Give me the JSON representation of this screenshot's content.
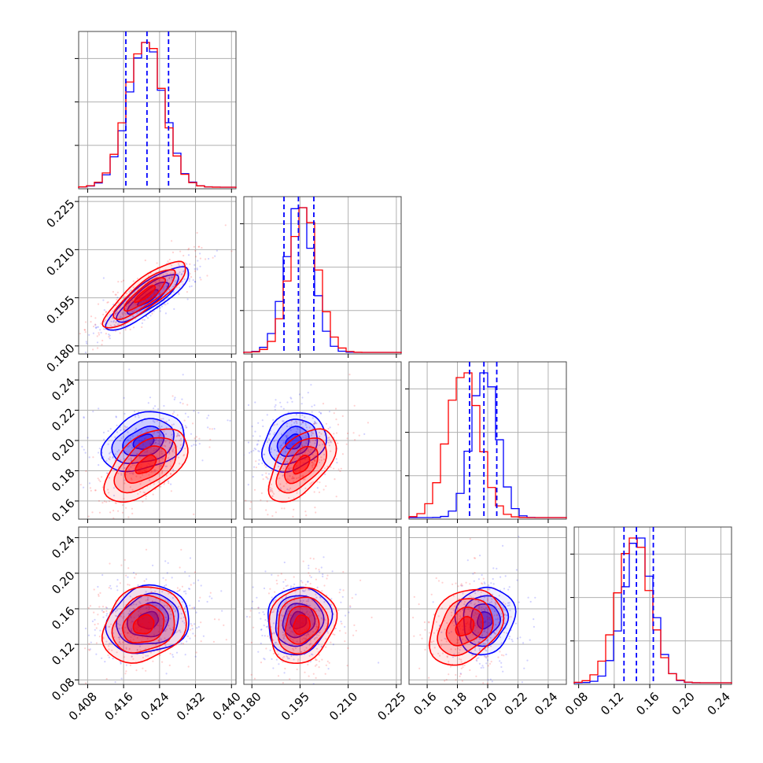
{
  "colors": {
    "blue": "#0000ff",
    "red": "#ff0000",
    "grid": "#b0b0b0"
  },
  "chart_data": {
    "type": "corner",
    "title": "",
    "grid": true,
    "dimensions": [
      {
        "range": [
          0.406,
          0.441
        ],
        "ticks": [
          "0.408",
          "0.416",
          "0.424",
          "0.432",
          "0.440"
        ],
        "tick_values": [
          0.408,
          0.416,
          0.424,
          0.432,
          0.44
        ],
        "blue": {
          "mean": 0.421,
          "sd": 0.004
        },
        "red": {
          "mean": 0.4208,
          "sd": 0.004
        },
        "quantiles": [
          0.4165,
          0.4212,
          0.426
        ]
      },
      {
        "range": [
          0.1775,
          0.2265
        ],
        "ticks": [
          "0.180",
          "0.195",
          "0.210",
          "0.225"
        ],
        "tick_values": [
          0.18,
          0.195,
          0.21,
          0.225
        ],
        "blue": {
          "mean": 0.1948,
          "sd": 0.0043
        },
        "red": {
          "mean": 0.1962,
          "sd": 0.0045
        },
        "quantiles": [
          0.19,
          0.1945,
          0.1993
        ]
      },
      {
        "range": [
          0.148,
          0.252
        ],
        "ticks": [
          "0.16",
          "0.18",
          "0.20",
          "0.22",
          "0.24"
        ],
        "tick_values": [
          0.16,
          0.18,
          0.2,
          0.22,
          0.24
        ],
        "blue": {
          "mean": 0.198,
          "sd": 0.0085
        },
        "red": {
          "mean": 0.184,
          "sd": 0.0105
        },
        "quantiles": [
          0.188,
          0.1975,
          0.206
        ]
      },
      {
        "range": [
          0.075,
          0.252
        ],
        "ticks": [
          "0.08",
          "0.12",
          "0.16",
          "0.20",
          "0.24"
        ],
        "tick_values": [
          0.08,
          0.12,
          0.16,
          0.2,
          0.24
        ],
        "blue": {
          "mean": 0.147,
          "sd": 0.0165
        },
        "red": {
          "mean": 0.142,
          "sd": 0.0185
        },
        "quantiles": [
          0.131,
          0.145,
          0.164
        ]
      }
    ],
    "pairs": [
      {
        "row": 1,
        "col": 0,
        "blue": {
          "mean": [
            0.4215,
            0.195
          ],
          "corr": 0.85
        },
        "red": {
          "mean": [
            0.4208,
            0.1962
          ],
          "corr": 0.85
        }
      },
      {
        "row": 2,
        "col": 0,
        "blue": {
          "mean": [
            0.4205,
            0.199
          ],
          "corr": 0.3
        },
        "red": {
          "mean": [
            0.421,
            0.184
          ],
          "corr": 0.55
        }
      },
      {
        "row": 2,
        "col": 1,
        "blue": {
          "mean": [
            0.193,
            0.199
          ],
          "corr": 0.25
        },
        "red": {
          "mean": [
            0.1955,
            0.184
          ],
          "corr": 0.55
        }
      },
      {
        "row": 3,
        "col": 0,
        "blue": {
          "mean": [
            0.4215,
            0.147
          ],
          "corr": 0.15
        },
        "red": {
          "mean": [
            0.4205,
            0.142
          ],
          "corr": 0.2
        }
      },
      {
        "row": 3,
        "col": 1,
        "blue": {
          "mean": [
            0.1945,
            0.147
          ],
          "corr": 0.1
        },
        "red": {
          "mean": [
            0.1955,
            0.142
          ],
          "corr": 0.15
        }
      },
      {
        "row": 3,
        "col": 2,
        "blue": {
          "mean": [
            0.198,
            0.147
          ],
          "corr": 0.1
        },
        "red": {
          "mean": [
            0.185,
            0.14
          ],
          "corr": 0.3
        }
      }
    ],
    "contour_levels_sigma": [
      0.5,
      1.0,
      1.5,
      2.0
    ]
  }
}
